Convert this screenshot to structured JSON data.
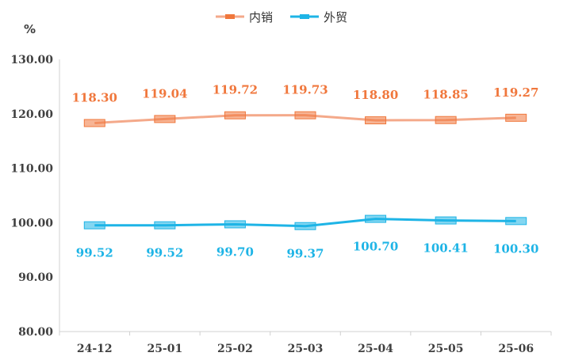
{
  "chart_data": {
    "type": "line",
    "ylabel": "%",
    "ylim": [
      80,
      130
    ],
    "yticks": [
      "80.00",
      "90.00",
      "100.00",
      "110.00",
      "120.00",
      "130.00"
    ],
    "categories": [
      "24-12",
      "25-01",
      "25-02",
      "25-03",
      "25-04",
      "25-05",
      "25-06"
    ],
    "legend_position": "top-center",
    "grid": false,
    "series": [
      {
        "name": "内销",
        "values": [
          118.3,
          119.04,
          119.72,
          119.73,
          118.8,
          118.85,
          119.27
        ],
        "labels": [
          "118.30",
          "119.04",
          "119.72",
          "119.73",
          "118.80",
          "118.85",
          "119.27"
        ],
        "line_color": "#F4A98A",
        "marker_color": "#F0773C",
        "label_color": "#F0773C",
        "label_position": "above"
      },
      {
        "name": "外贸",
        "values": [
          99.52,
          99.52,
          99.7,
          99.37,
          100.7,
          100.41,
          100.3
        ],
        "labels": [
          "99.52",
          "99.52",
          "99.70",
          "99.37",
          "100.70",
          "100.41",
          "100.30"
        ],
        "line_color": "#1EB4E6",
        "marker_color": "#1EB4E6",
        "label_color": "#1EB4E6",
        "label_position": "below"
      }
    ]
  }
}
